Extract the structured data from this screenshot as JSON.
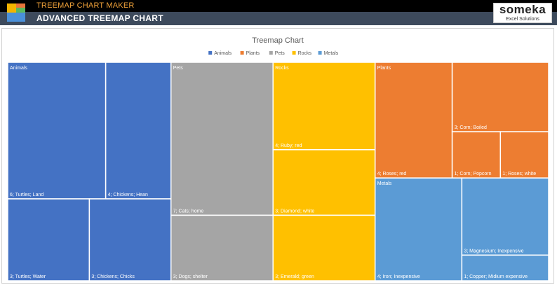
{
  "header": {
    "app_name": "TREEMAP CHART MAKER",
    "page_title": "ADVANCED TREEMAP CHART",
    "brand_name": "someka",
    "brand_tagline": "Excel Solutions",
    "logo_icon": "treemap-logo-icon",
    "logo_colors": [
      "#f4b400",
      "#e8743b",
      "#5cb85c",
      "#4a90d9"
    ]
  },
  "chart_data": {
    "type": "treemap",
    "title": "Treemap Chart",
    "legend_position": "top",
    "categories": [
      {
        "name": "Animals",
        "color": "#4472c4",
        "items": [
          {
            "label": "6; Turtles; Land",
            "value": 6
          },
          {
            "label": "4; Chickens; Hean",
            "value": 4
          },
          {
            "label": "3; Turtles; Water",
            "value": 3
          },
          {
            "label": "3; Chickens; Chicks",
            "value": 3
          }
        ]
      },
      {
        "name": "Pets",
        "color": "#a5a5a5",
        "items": [
          {
            "label": "7; Cats; home",
            "value": 7
          },
          {
            "label": "3; Dogs; shelter",
            "value": 3
          }
        ]
      },
      {
        "name": "Rocks",
        "color": "#ffc000",
        "items": [
          {
            "label": "4; Ruby; red",
            "value": 4
          },
          {
            "label": "3; Diamond; white",
            "value": 3
          },
          {
            "label": "3; Emerald; green",
            "value": 3
          }
        ]
      },
      {
        "name": "Plants",
        "color": "#ed7d31",
        "items": [
          {
            "label": "4; Roses; red",
            "value": 4
          },
          {
            "label": "3; Corn; Boiled",
            "value": 3
          },
          {
            "label": "1; Corn; Popcorn",
            "value": 1
          },
          {
            "label": "1; Roses; white",
            "value": 1
          }
        ]
      },
      {
        "name": "Metals",
        "color": "#5b9bd5",
        "items": [
          {
            "label": "4; Iron; Inexpensive",
            "value": 4
          },
          {
            "label": "3; Magnesium; Inexpensive",
            "value": 3
          },
          {
            "label": "1; Copper; Midium expensive",
            "value": 1
          }
        ]
      }
    ],
    "legend": [
      "Animals",
      "Plants",
      "Pets",
      "Rocks",
      "Metals"
    ]
  }
}
